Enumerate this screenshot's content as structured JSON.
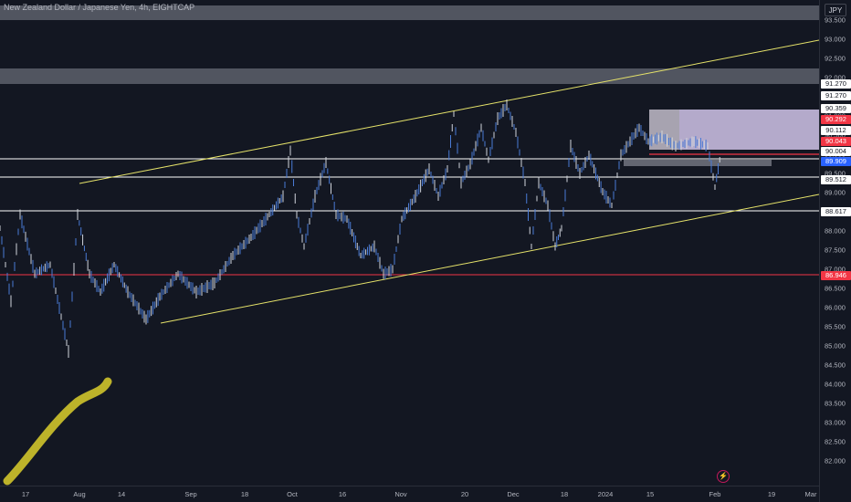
{
  "symbol_title": "New Zealand Dollar / Japanese Yen, 4h, EIGHTCAP",
  "currency": "JPY",
  "price_ticks": [
    "93.500",
    "93.000",
    "92.500",
    "92.000",
    "91.500",
    "91.000",
    "90.500",
    "90.000",
    "89.500",
    "89.000",
    "88.500",
    "88.000",
    "87.500",
    "87.000",
    "86.500",
    "86.000",
    "85.500",
    "85.000",
    "84.500",
    "84.000",
    "83.500",
    "83.000",
    "82.500",
    "82.000"
  ],
  "time_ticks": [
    "17",
    "Aug",
    "14",
    "Sep",
    "18",
    "Oct",
    "16",
    "Nov",
    "20",
    "Dec",
    "18",
    "2024",
    "15",
    "Feb",
    "19",
    "Mar"
  ],
  "price_labels": [
    {
      "text": "91.270",
      "bg": "#ffffff",
      "fg": "#131722"
    },
    {
      "text": "91.270",
      "bg": "#ffffff",
      "fg": "#131722"
    },
    {
      "text": "90.359",
      "bg": "#ffffff",
      "fg": "#131722"
    },
    {
      "text": "90.292",
      "bg": "#f23645",
      "fg": "#ffffff"
    },
    {
      "text": "90.112",
      "bg": "#ffffff",
      "fg": "#131722"
    },
    {
      "text": "90.043",
      "bg": "#f23645",
      "fg": "#ffffff"
    },
    {
      "text": "90.004",
      "bg": "#ffffff",
      "fg": "#131722"
    },
    {
      "text": "89.909",
      "bg": "#2962ff",
      "fg": "#ffffff"
    },
    {
      "text": "89.512",
      "bg": "#ffffff",
      "fg": "#131722"
    },
    {
      "text": "88.617",
      "bg": "#ffffff",
      "fg": "#131722"
    },
    {
      "text": "86.946",
      "bg": "#f23645",
      "fg": "#ffffff"
    }
  ],
  "colors": {
    "background": "#131722",
    "candles": "#4a7bd6",
    "trendline": "#e6e36a",
    "support_red": "#f23645",
    "highlight_box": "#d1c4e9",
    "brush": "#bdb32a"
  },
  "lightning_icon": "lightning-icon"
}
